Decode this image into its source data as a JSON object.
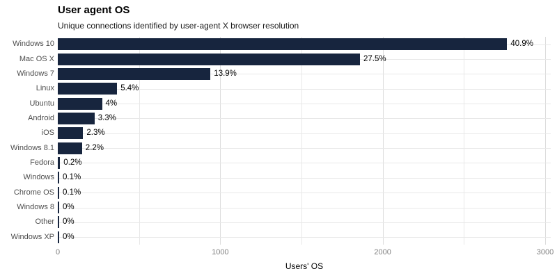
{
  "header": {
    "title": "User agent OS",
    "subtitle": "Unique connections identified by user-agent X browser resolution"
  },
  "chart_data": {
    "type": "bar",
    "orientation": "horizontal",
    "title": "User agent OS",
    "subtitle": "Unique connections identified by user-agent X browser resolution",
    "categories": [
      "Windows 10",
      "Mac OS X",
      "Windows 7",
      "Linux",
      "Ubuntu",
      "Android",
      "iOS",
      "Windows 8.1",
      "Fedora",
      "Windows",
      "Chrome OS",
      "Windows 8",
      "Other",
      "Windows XP"
    ],
    "values": [
      2766,
      1860,
      940,
      365,
      272,
      226,
      156,
      149,
      14,
      7,
      7,
      2,
      2,
      1
    ],
    "percent_labels": [
      "40.9%",
      "27.5%",
      "13.9%",
      "5.4%",
      "4%",
      "3.3%",
      "2.3%",
      "2.2%",
      "0.2%",
      "0.1%",
      "0.1%",
      "0%",
      "0%",
      "0%"
    ],
    "xlabel": "Users' OS",
    "ylabel": "",
    "xlim": [
      0,
      3000
    ],
    "x_tick_values": [
      0,
      1000,
      2000,
      3000
    ],
    "x_tick_labels": [
      "0",
      "1000",
      "2000",
      "3000"
    ],
    "x_minor_tick_values": [
      500,
      1500,
      2500
    ],
    "grid": true,
    "legend": false,
    "colors": {
      "bar": "#17253E",
      "grid_major": "#dcdcdc",
      "grid_minor": "#e8e8e8",
      "category_label": "#4d4d4d",
      "value_label": "#000000",
      "tick_label": "#808080",
      "background": "#ffffff"
    }
  }
}
